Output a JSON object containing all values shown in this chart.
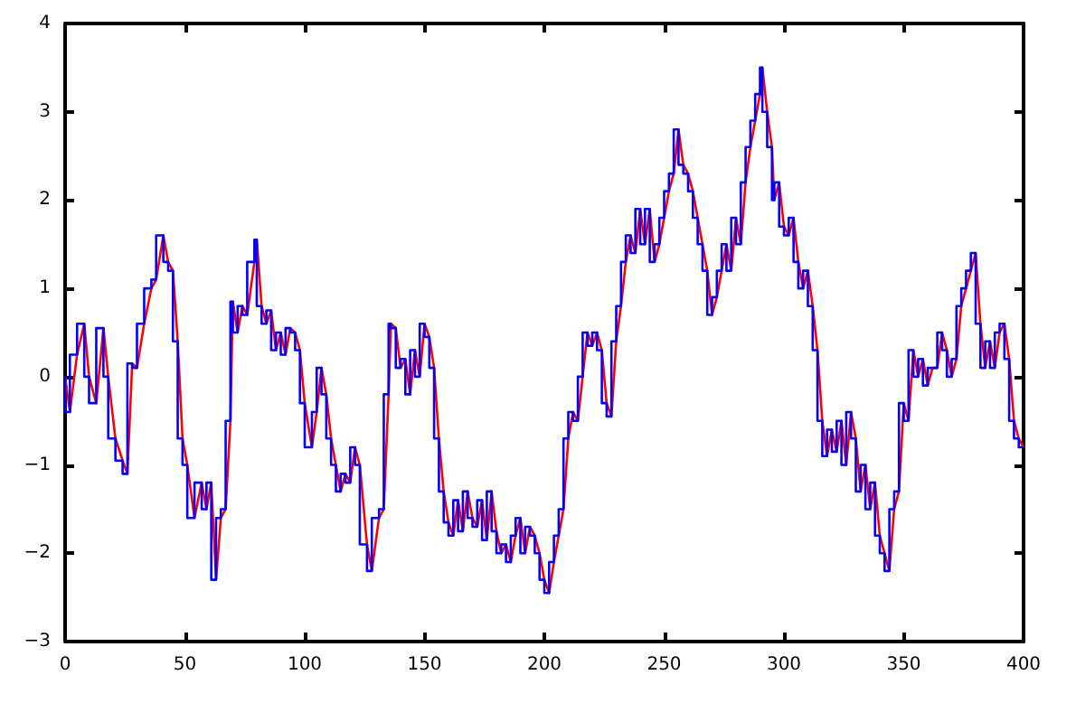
{
  "chart_data": {
    "type": "line",
    "x": [
      0,
      2,
      5,
      8,
      10,
      13,
      16,
      18,
      21,
      24,
      26,
      28,
      30,
      33,
      36,
      38,
      41,
      43,
      45,
      47,
      49,
      51,
      54,
      57,
      59,
      61,
      63,
      65,
      67,
      69,
      70,
      72,
      74,
      76,
      79,
      80,
      82,
      84,
      86,
      88,
      90,
      92,
      94,
      96,
      98,
      100,
      103,
      105,
      107,
      109,
      111,
      113,
      115,
      117,
      119,
      121,
      123,
      126,
      128,
      131,
      133,
      135,
      136,
      138,
      140,
      142,
      144,
      146,
      148,
      150,
      152,
      154,
      156,
      158,
      160,
      162,
      164,
      166,
      168,
      170,
      172,
      174,
      176,
      178,
      180,
      182,
      184,
      186,
      188,
      190,
      192,
      194,
      196,
      198,
      200,
      202,
      204,
      206,
      208,
      210,
      212,
      214,
      216,
      218,
      220,
      222,
      224,
      226,
      228,
      230,
      232,
      234,
      236,
      238,
      240,
      242,
      244,
      246,
      248,
      250,
      252,
      254,
      256,
      258,
      260,
      262,
      264,
      266,
      268,
      270,
      272,
      274,
      276,
      278,
      280,
      282,
      284,
      286,
      288,
      290,
      291,
      293,
      295,
      296,
      298,
      300,
      302,
      304,
      306,
      308,
      310,
      312,
      314,
      316,
      318,
      320,
      322,
      324,
      326,
      328,
      330,
      332,
      334,
      336,
      338,
      340,
      342,
      344,
      346,
      348,
      350,
      352,
      354,
      356,
      358,
      360,
      362,
      364,
      366,
      368,
      370,
      372,
      374,
      376,
      378,
      380,
      382,
      384,
      386,
      388,
      390,
      392,
      394,
      396,
      398,
      400
    ],
    "series": [
      {
        "color": "#ff0000",
        "values": [
          0,
          -0.4,
          0.25,
          0.6,
          0,
          -0.3,
          0.55,
          0,
          -0.7,
          -0.95,
          -1.1,
          0.15,
          0.1,
          0.6,
          1.0,
          1.1,
          1.6,
          1.3,
          1.2,
          0.4,
          -0.7,
          -1.0,
          -1.6,
          -1.2,
          -1.5,
          -1.2,
          -2.3,
          -1.6,
          -1.5,
          -0.5,
          0.85,
          0.5,
          0.8,
          0.7,
          1.3,
          1.55,
          0.8,
          0.6,
          0.75,
          0.3,
          0.5,
          0.25,
          0.55,
          0.5,
          0.3,
          -0.3,
          -0.8,
          -0.4,
          0.1,
          -0.2,
          -0.7,
          -1.0,
          -1.3,
          -1.1,
          -1.2,
          -0.8,
          -1.0,
          -1.9,
          -2.2,
          -1.6,
          -1.5,
          -0.2,
          0.6,
          0.55,
          0.1,
          0.2,
          -0.2,
          0.3,
          0.0,
          0.6,
          0.45,
          0.1,
          -0.7,
          -1.3,
          -1.65,
          -1.8,
          -1.4,
          -1.75,
          -1.3,
          -1.6,
          -1.7,
          -1.4,
          -1.85,
          -1.3,
          -1.75,
          -2.0,
          -1.9,
          -2.1,
          -1.8,
          -1.6,
          -2.0,
          -1.7,
          -1.8,
          -2.0,
          -2.3,
          -2.45,
          -2.1,
          -1.8,
          -1.5,
          -0.7,
          -0.4,
          -0.5,
          0.0,
          0.5,
          0.35,
          0.5,
          0.3,
          -0.3,
          -0.45,
          0.4,
          0.8,
          1.3,
          1.6,
          1.4,
          1.9,
          1.5,
          1.9,
          1.3,
          1.5,
          1.8,
          2.1,
          2.3,
          2.8,
          2.4,
          2.3,
          2.1,
          1.8,
          1.5,
          1.2,
          0.7,
          0.9,
          1.2,
          1.5,
          1.2,
          1.8,
          1.5,
          2.2,
          2.6,
          2.9,
          3.2,
          3.5,
          3.0,
          2.6,
          2.0,
          2.2,
          1.7,
          1.6,
          1.8,
          1.3,
          1.0,
          1.2,
          0.8,
          0.3,
          -0.5,
          -0.9,
          -0.6,
          -0.85,
          -0.5,
          -1.0,
          -0.4,
          -0.7,
          -1.3,
          -1.0,
          -1.5,
          -1.2,
          -1.8,
          -2.0,
          -2.2,
          -1.5,
          -1.3,
          -0.3,
          -0.5,
          0.3,
          0.0,
          0.2,
          -0.1,
          0.1,
          0.1,
          0.5,
          0.3,
          0.0,
          0.2,
          0.8,
          1.0,
          1.2,
          1.4,
          0.6,
          0.1,
          0.4,
          0.1,
          0.5,
          0.6,
          0.2,
          -0.5,
          -0.7,
          -0.8
        ]
      },
      {
        "type": "step",
        "color": "#0000ff",
        "values": [
          0,
          -0.4,
          0.25,
          0.6,
          0,
          -0.3,
          0.55,
          0,
          -0.7,
          -0.95,
          -1.1,
          0.15,
          0.1,
          0.6,
          1.0,
          1.1,
          1.6,
          1.3,
          1.2,
          0.4,
          -0.7,
          -1.0,
          -1.6,
          -1.2,
          -1.5,
          -1.2,
          -2.3,
          -1.6,
          -1.5,
          -0.5,
          0.85,
          0.5,
          0.8,
          0.7,
          1.3,
          1.55,
          0.8,
          0.6,
          0.75,
          0.3,
          0.5,
          0.25,
          0.55,
          0.5,
          0.3,
          -0.3,
          -0.8,
          -0.4,
          0.1,
          -0.2,
          -0.7,
          -1.0,
          -1.3,
          -1.1,
          -1.2,
          -0.8,
          -1.0,
          -1.9,
          -2.2,
          -1.6,
          -1.5,
          -0.2,
          0.6,
          0.55,
          0.1,
          0.2,
          -0.2,
          0.3,
          0.0,
          0.6,
          0.45,
          0.1,
          -0.7,
          -1.3,
          -1.65,
          -1.8,
          -1.4,
          -1.75,
          -1.3,
          -1.6,
          -1.7,
          -1.4,
          -1.85,
          -1.3,
          -1.75,
          -2.0,
          -1.9,
          -2.1,
          -1.8,
          -1.6,
          -2.0,
          -1.7,
          -1.8,
          -2.0,
          -2.3,
          -2.45,
          -2.1,
          -1.8,
          -1.5,
          -0.7,
          -0.4,
          -0.5,
          0.0,
          0.5,
          0.35,
          0.5,
          0.3,
          -0.3,
          -0.45,
          0.4,
          0.8,
          1.3,
          1.6,
          1.4,
          1.9,
          1.5,
          1.9,
          1.3,
          1.5,
          1.8,
          2.1,
          2.3,
          2.8,
          2.4,
          2.3,
          2.1,
          1.8,
          1.5,
          1.2,
          0.7,
          0.9,
          1.2,
          1.5,
          1.2,
          1.8,
          1.5,
          2.2,
          2.6,
          2.9,
          3.2,
          3.5,
          3.0,
          2.6,
          2.0,
          2.2,
          1.7,
          1.6,
          1.8,
          1.3,
          1.0,
          1.2,
          0.8,
          0.3,
          -0.5,
          -0.9,
          -0.6,
          -0.85,
          -0.5,
          -1.0,
          -0.4,
          -0.7,
          -1.3,
          -1.0,
          -1.5,
          -1.2,
          -1.8,
          -2.0,
          -2.2,
          -1.5,
          -1.3,
          -0.3,
          -0.5,
          0.3,
          0.0,
          0.2,
          -0.1,
          0.1,
          0.1,
          0.5,
          0.3,
          0.0,
          0.2,
          0.8,
          1.0,
          1.2,
          1.4,
          0.6,
          0.1,
          0.4,
          0.1,
          0.5,
          0.6,
          0.2,
          -0.5,
          -0.7,
          -0.8
        ]
      }
    ],
    "xlim": [
      0,
      400
    ],
    "xticks": [
      0,
      50,
      100,
      150,
      200,
      250,
      300,
      350,
      400
    ],
    "ylim": [
      -3,
      4
    ],
    "yticks": [
      -3,
      -2,
      -1,
      0,
      1,
      2,
      3,
      4
    ],
    "grid": false,
    "marker": "none",
    "line_style": "solid"
  }
}
